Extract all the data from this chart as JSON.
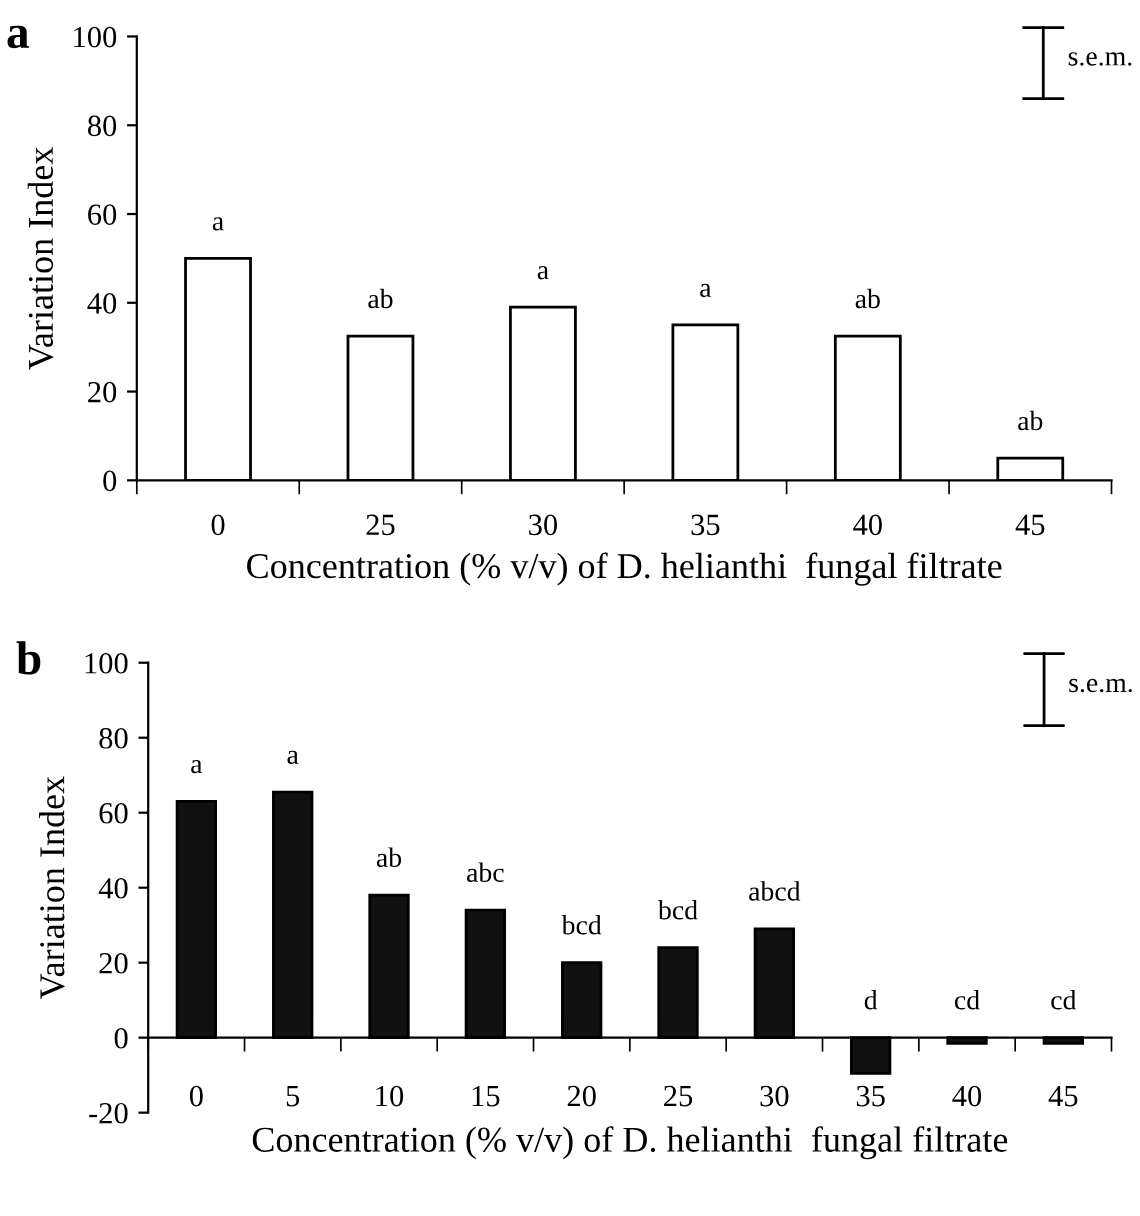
{
  "chart_data": [
    {
      "type": "bar",
      "title": "a",
      "xlabel": "Concentration (% v/v) of D. helianthi  fungal filtrate",
      "ylabel": "Variation Index",
      "categories": [
        "0",
        "25",
        "30",
        "35",
        "40",
        "45"
      ],
      "series": [
        {
          "color": "#ffffff",
          "values": [
            50,
            32.5,
            39,
            35,
            32.5,
            5
          ]
        }
      ],
      "ylim": [
        0,
        100
      ],
      "yticks": [
        0,
        20,
        40,
        60,
        80,
        100
      ],
      "grid": false,
      "legend": false,
      "annotations": [
        {
          "text": "a",
          "x": "0",
          "y": 50
        },
        {
          "text": "ab",
          "x": "25",
          "y": 32.5
        },
        {
          "text": "a",
          "x": "30",
          "y": 39
        },
        {
          "text": "a",
          "x": "35",
          "y": 35
        },
        {
          "text": "ab",
          "x": "40",
          "y": 32.5
        },
        {
          "text": "ab",
          "x": "45",
          "y": 5
        },
        "s.e.m."
      ]
    },
    {
      "type": "bar",
      "title": "b",
      "xlabel": "Concentration (% v/v) of D. helianthi  fungal filtrate",
      "ylabel": "Variation Index",
      "categories": [
        "0",
        "5",
        "10",
        "15",
        "20",
        "25",
        "30",
        "35",
        "40",
        "45"
      ],
      "series": [
        {
          "color": "#111111",
          "values": [
            63,
            65.5,
            38,
            34,
            20,
            24,
            29,
            -9.5,
            -1.5,
            -1.5
          ]
        }
      ],
      "ylim": [
        -20,
        100
      ],
      "yticks": [
        -20,
        0,
        20,
        40,
        60,
        80,
        100
      ],
      "grid": false,
      "legend": false,
      "annotations": [
        {
          "text": "a",
          "x": "0",
          "y": 63
        },
        {
          "text": "a",
          "x": "5",
          "y": 65.5
        },
        {
          "text": "ab",
          "x": "10",
          "y": 38
        },
        {
          "text": "abc",
          "x": "15",
          "y": 34
        },
        {
          "text": "bcd",
          "x": "20",
          "y": 20
        },
        {
          "text": "bcd",
          "x": "25",
          "y": 24
        },
        {
          "text": "abcd",
          "x": "30",
          "y": 29
        },
        {
          "text": "d",
          "x": "35",
          "y": -9.5
        },
        {
          "text": "cd",
          "x": "40",
          "y": -1.5
        },
        {
          "text": "cd",
          "x": "45",
          "y": -1.5
        },
        "s.e.m."
      ]
    }
  ]
}
